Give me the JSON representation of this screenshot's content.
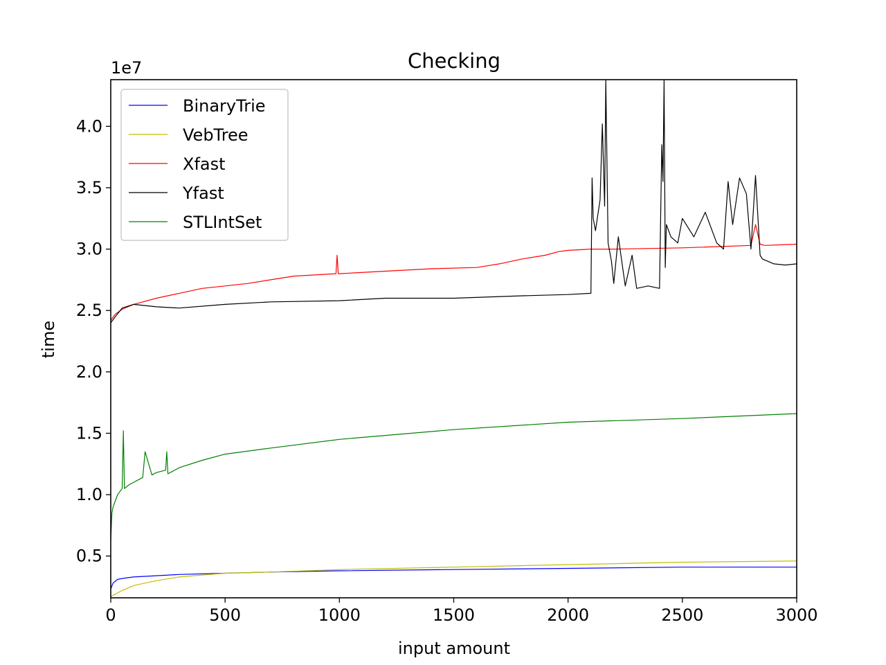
{
  "chart_data": {
    "type": "line",
    "title": "Checking",
    "xlabel": "input amount",
    "ylabel": "time",
    "y_multiplier_label": "1e7",
    "xlim": [
      0,
      3000
    ],
    "ylim": [
      0.16,
      4.38
    ],
    "xticks": [
      0,
      500,
      1000,
      1500,
      2000,
      2500,
      3000
    ],
    "xtick_labels": [
      "0",
      "500",
      "1000",
      "1500",
      "2000",
      "2500",
      "3000"
    ],
    "yticks": [
      0.5,
      1.0,
      1.5,
      2.0,
      2.5,
      3.0,
      3.5,
      4.0
    ],
    "ytick_labels": [
      "0.5",
      "1.0",
      "1.5",
      "2.0",
      "2.5",
      "3.0",
      "3.5",
      "4.0"
    ],
    "grid": false,
    "legend_position": "upper-left",
    "series": [
      {
        "name": "BinaryTrie",
        "color": "#0000ff",
        "x": [
          0,
          10,
          30,
          60,
          100,
          200,
          300,
          500,
          700,
          1000,
          1500,
          2000,
          2500,
          3000
        ],
        "y": [
          0.23,
          0.28,
          0.31,
          0.32,
          0.33,
          0.34,
          0.35,
          0.36,
          0.37,
          0.38,
          0.39,
          0.4,
          0.41,
          0.41
        ]
      },
      {
        "name": "VebTree",
        "color": "#bfbf00",
        "x": [
          0,
          20,
          50,
          100,
          200,
          300,
          500,
          700,
          1000,
          1500,
          2000,
          2500,
          3000
        ],
        "y": [
          0.17,
          0.19,
          0.22,
          0.26,
          0.3,
          0.33,
          0.36,
          0.37,
          0.39,
          0.41,
          0.43,
          0.45,
          0.46
        ]
      },
      {
        "name": "Xfast",
        "color": "#ff0000",
        "x": [
          0,
          20,
          50,
          100,
          200,
          300,
          400,
          500,
          600,
          700,
          800,
          985,
          990,
          995,
          1000,
          1200,
          1400,
          1600,
          1700,
          1800,
          1900,
          1960,
          2000,
          2100,
          2200,
          2500,
          2800,
          2820,
          2840,
          2860,
          3000
        ],
        "y": [
          2.42,
          2.47,
          2.51,
          2.55,
          2.6,
          2.64,
          2.68,
          2.7,
          2.72,
          2.75,
          2.78,
          2.8,
          2.95,
          2.8,
          2.8,
          2.82,
          2.84,
          2.85,
          2.88,
          2.92,
          2.95,
          2.98,
          2.99,
          3.0,
          3.0,
          3.01,
          3.03,
          3.2,
          3.04,
          3.03,
          3.04
        ]
      },
      {
        "name": "Yfast",
        "color": "#000000",
        "x": [
          0,
          20,
          50,
          100,
          200,
          300,
          500,
          700,
          1000,
          1200,
          1500,
          1800,
          2000,
          2100,
          2105,
          2110,
          2120,
          2140,
          2150,
          2160,
          2165,
          2175,
          2190,
          2200,
          2220,
          2250,
          2280,
          2300,
          2350,
          2400,
          2410,
          2415,
          2420,
          2425,
          2430,
          2450,
          2480,
          2500,
          2550,
          2600,
          2650,
          2680,
          2700,
          2720,
          2750,
          2780,
          2800,
          2820,
          2840,
          2850,
          2900,
          2950,
          3000
        ],
        "y": [
          2.4,
          2.45,
          2.52,
          2.55,
          2.53,
          2.52,
          2.55,
          2.57,
          2.58,
          2.6,
          2.6,
          2.62,
          2.63,
          2.64,
          3.58,
          3.25,
          3.15,
          3.4,
          4.02,
          3.35,
          4.38,
          3.05,
          2.9,
          2.72,
          3.1,
          2.7,
          2.95,
          2.68,
          2.7,
          2.68,
          3.85,
          3.55,
          4.38,
          2.85,
          3.2,
          3.1,
          3.05,
          3.25,
          3.1,
          3.3,
          3.05,
          3.0,
          3.55,
          3.2,
          3.58,
          3.45,
          3.0,
          3.6,
          2.95,
          2.92,
          2.88,
          2.87,
          2.88
        ]
      },
      {
        "name": "STLIntSet",
        "color": "#008000",
        "x": [
          0,
          5,
          10,
          20,
          30,
          50,
          55,
          60,
          80,
          100,
          120,
          140,
          150,
          180,
          200,
          240,
          245,
          250,
          300,
          400,
          500,
          700,
          1000,
          1500,
          2000,
          2500,
          3000
        ],
        "y": [
          0.62,
          0.85,
          0.9,
          0.95,
          1.0,
          1.05,
          1.52,
          1.05,
          1.08,
          1.1,
          1.12,
          1.14,
          1.35,
          1.16,
          1.18,
          1.2,
          1.35,
          1.17,
          1.22,
          1.28,
          1.33,
          1.38,
          1.45,
          1.53,
          1.59,
          1.62,
          1.66
        ]
      }
    ]
  }
}
